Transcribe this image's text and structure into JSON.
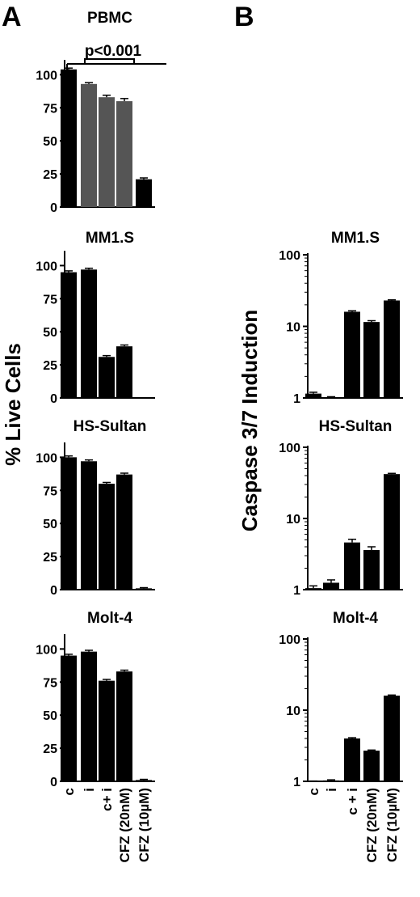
{
  "panel_labels": {
    "a": "A",
    "b": "B"
  },
  "axis_labels": {
    "left": "% Live Cells",
    "right": "Caspase 3/7 Induction"
  },
  "significance": "p<0.001",
  "colors": {
    "black": "#000000",
    "gray": "#555555"
  },
  "chart_data": [
    {
      "type": "bar",
      "panel": "A",
      "title": "PBMC",
      "categories": [
        "c",
        "i",
        "c+ i",
        "CFZ (20nM)",
        "CFZ (10µM)"
      ],
      "values": [
        104,
        93,
        83,
        80,
        21
      ],
      "errors": [
        1,
        1,
        1.5,
        2,
        1
      ],
      "bar_colors": [
        "#000000",
        "#555555",
        "#555555",
        "#555555",
        "#000000"
      ],
      "ylim": [
        0,
        110
      ],
      "yticks": [
        0,
        25,
        50,
        75,
        100
      ],
      "scale": "linear",
      "annotation": "p<0.001"
    },
    {
      "type": "bar",
      "panel": "A",
      "title": "MM1.S",
      "categories": [
        "c",
        "i",
        "c+ i",
        "CFZ (20nM)",
        "CFZ (10µM)"
      ],
      "values": [
        95,
        97,
        31,
        39,
        0
      ],
      "errors": [
        1,
        1,
        1,
        1,
        0
      ],
      "ylim": [
        0,
        110
      ],
      "yticks": [
        0,
        25,
        50,
        75,
        100
      ],
      "scale": "linear"
    },
    {
      "type": "bar",
      "panel": "A",
      "title": "HS-Sultan",
      "categories": [
        "c",
        "i",
        "c+ i",
        "CFZ (20nM)",
        "CFZ (10µM)"
      ],
      "values": [
        100,
        97,
        80,
        87,
        1
      ],
      "errors": [
        1,
        1,
        1,
        1,
        0.5
      ],
      "ylim": [
        0,
        110
      ],
      "yticks": [
        0,
        25,
        50,
        75,
        100
      ],
      "scale": "linear"
    },
    {
      "type": "bar",
      "panel": "A",
      "title": "Molt-4",
      "categories": [
        "c",
        "i",
        "c+ i",
        "CFZ (20nM)",
        "CFZ (10µM)"
      ],
      "values": [
        95,
        98,
        76,
        83,
        1
      ],
      "errors": [
        1,
        1,
        1,
        1,
        0.5
      ],
      "ylim": [
        0,
        110
      ],
      "yticks": [
        0,
        25,
        50,
        75,
        100
      ],
      "scale": "linear",
      "show_xticklabels": true
    },
    {
      "type": "bar",
      "panel": "B",
      "title": "MM1.S",
      "categories": [
        "c",
        "i",
        "c + i",
        "CFZ (20nM)",
        "CFZ (10µM)"
      ],
      "values": [
        1.15,
        1.02,
        16,
        11.5,
        23
      ],
      "errors": [
        0.05,
        0.02,
        0.5,
        0.5,
        0.5
      ],
      "ylim": [
        1,
        100
      ],
      "yticks": [
        1,
        10,
        100
      ],
      "scale": "log"
    },
    {
      "type": "bar",
      "panel": "B",
      "title": "HS-Sultan",
      "categories": [
        "c",
        "i",
        "c + i",
        "CFZ (20nM)",
        "CFZ (10µM)"
      ],
      "values": [
        1.05,
        1.25,
        4.6,
        3.6,
        42
      ],
      "errors": [
        0.08,
        0.12,
        0.5,
        0.4,
        1
      ],
      "ylim": [
        1,
        100
      ],
      "yticks": [
        1,
        10,
        100
      ],
      "scale": "log"
    },
    {
      "type": "bar",
      "panel": "B",
      "title": "Molt-4",
      "categories": [
        "c",
        "i",
        "c + i",
        "CFZ (20nM)",
        "CFZ (10µM)"
      ],
      "values": [
        1.0,
        1.03,
        4.0,
        2.7,
        16
      ],
      "errors": [
        0.01,
        0.02,
        0.1,
        0.05,
        0.3
      ],
      "ylim": [
        1,
        100
      ],
      "yticks": [
        1,
        10,
        100
      ],
      "scale": "log",
      "show_xticklabels": true
    }
  ]
}
